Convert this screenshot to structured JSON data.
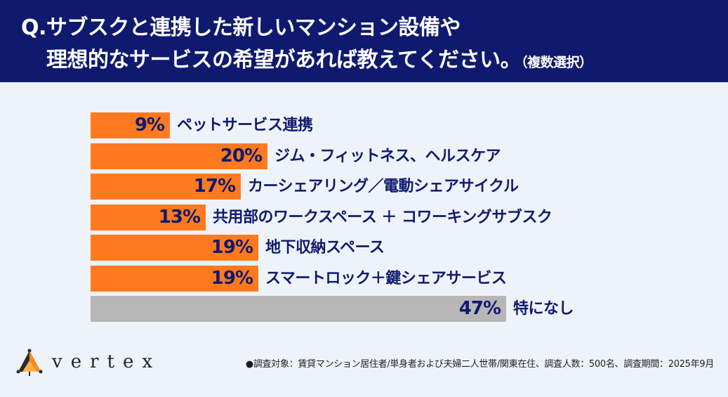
{
  "header": {
    "line1": "Q.サブスクと連携した新しいマンション設備や",
    "line2": "理想的なサービスの希望があれば教えてください。",
    "note": "（複数選択）"
  },
  "colors": {
    "header_bg": "#0f1a6e",
    "bar_orange": "#ff7a1f",
    "bar_gray": "#b7b7b7",
    "text_navy": "#0f1a6e",
    "background": "#eef3fa"
  },
  "chart_data": {
    "type": "bar",
    "orientation": "horizontal",
    "categories": [
      "ペットサービス連携",
      "ジム・フィットネス、ヘルスケア",
      "カーシェアリング／電動シェアサイクル",
      "共用部のワークスペース ＋ コワーキングサブスク",
      "地下収納スペース",
      "スマートロック＋鍵シェアサービス",
      "特になし"
    ],
    "values": [
      9,
      20,
      17,
      13,
      19,
      19,
      47
    ],
    "value_labels": [
      "9%",
      "20%",
      "17%",
      "13%",
      "19%",
      "19%",
      "47%"
    ],
    "bar_colors": [
      "#ff7a1f",
      "#ff7a1f",
      "#ff7a1f",
      "#ff7a1f",
      "#ff7a1f",
      "#ff7a1f",
      "#b7b7b7"
    ],
    "xlim": [
      0,
      100
    ],
    "grid": false,
    "legend": "none"
  },
  "footer": {
    "brand": "vertex",
    "footnote": "●調査対象：賃貸マンション居住者/単身者および夫婦二人世帯/関東在住、調査人数：500名、調査期間：2025年9月"
  }
}
